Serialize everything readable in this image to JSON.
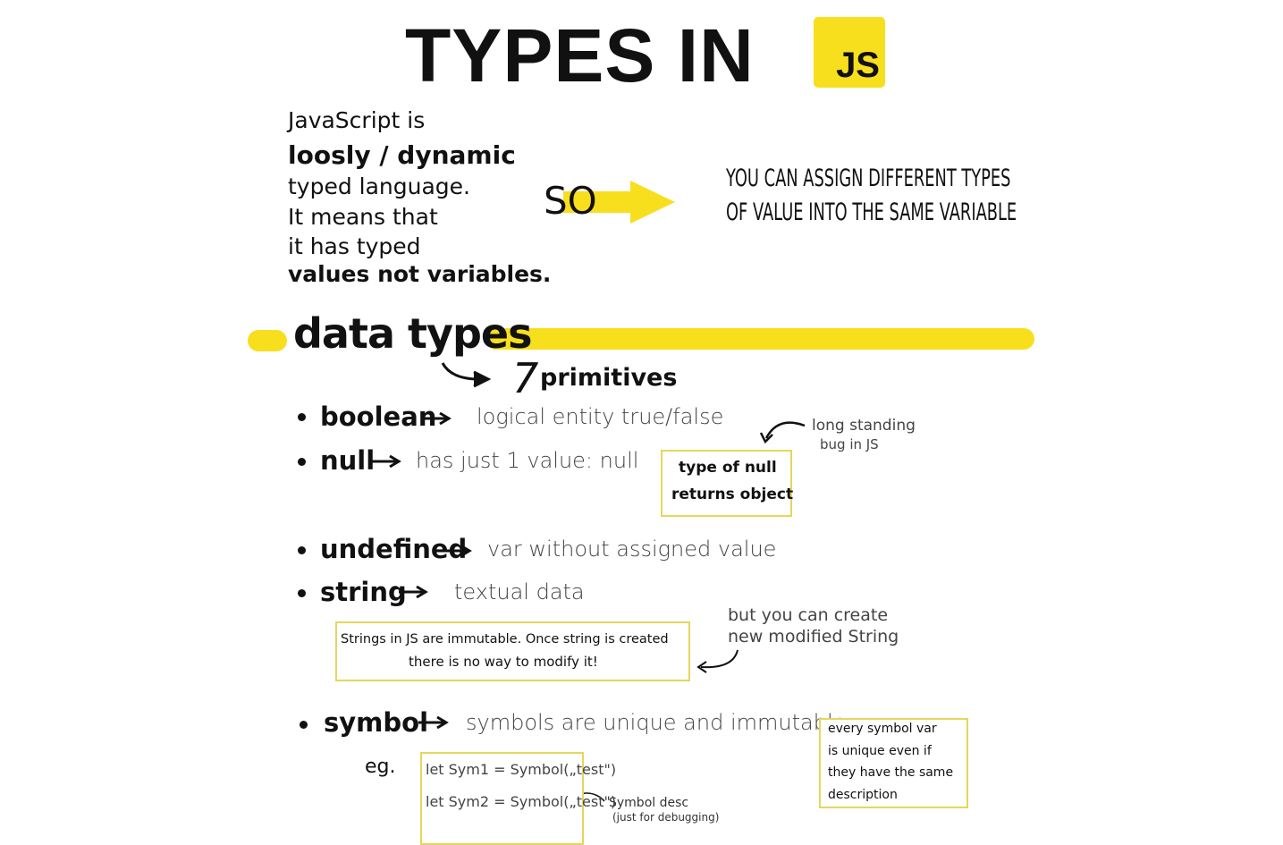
{
  "header": {
    "title": "TYPES IN",
    "badge": "JS"
  },
  "intro": {
    "lines": [
      "JavaScript is",
      "loosly / dynamic",
      "typed language.",
      "It means that",
      "it has typed",
      "values not variables."
    ],
    "so": "SO",
    "conclusion": [
      "YOU CAN ASSIGN DIFFERENT TYPES",
      "OF VALUE INTO THE SAME VARIABLE"
    ]
  },
  "section": {
    "title": "data types",
    "count": "7",
    "subtitle": "primitives"
  },
  "primitives": [
    {
      "name": "boolean",
      "description": "logical entity true/false"
    },
    {
      "name": "null",
      "description": "has just 1 value: null"
    },
    {
      "name": "undefined",
      "description": "var without assigned value"
    },
    {
      "name": "string",
      "description": "textual data"
    },
    {
      "name": "symbol",
      "description": "symbols are unique and immutable"
    }
  ],
  "notes": {
    "null_bug": [
      "long standing",
      "bug in JS"
    ],
    "null_box": [
      "type of null",
      "returns object"
    ],
    "string_box": [
      "Strings in JS are immutable. Once string is created",
      "there is no way to modify it!"
    ],
    "string_note": [
      "but you can create",
      "new modified String"
    ],
    "symbol_box": [
      "every symbol var",
      "is unique even if",
      "they have the same",
      "description"
    ],
    "example_label": "eg.",
    "code": [
      "let Sym1 = Symbol(„test\")",
      "let Sym2 = Symbol(„test\")"
    ],
    "symbol_desc": [
      "Symbol desc",
      "(just for debugging)"
    ]
  }
}
